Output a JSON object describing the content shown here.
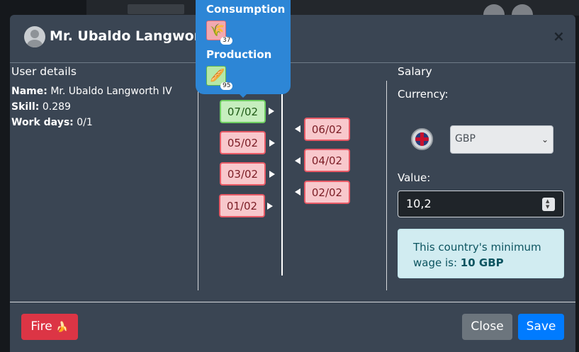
{
  "modal": {
    "title": "Mr. Ubaldo Langworth",
    "close_glyph": "×"
  },
  "user_details": {
    "heading": "User details",
    "name_label": "Name:",
    "name_value": "Mr. Ubaldo Langworth IV",
    "skill_label": "Skill:",
    "skill_value": "0.289",
    "workdays_label": "Work days:",
    "workdays_value": "0/1"
  },
  "tooltip": {
    "consumption_label": "Consumption",
    "consumption_icon": "wheat-icon",
    "consumption_count": "37",
    "production_label": "Production",
    "production_icon": "bread-icon",
    "production_count": "95"
  },
  "timeline": {
    "left_days": [
      {
        "label": "07/02",
        "status": "green"
      },
      {
        "label": "05/02",
        "status": "red"
      },
      {
        "label": "03/02",
        "status": "red"
      },
      {
        "label": "01/02",
        "status": "red"
      }
    ],
    "right_days": [
      {
        "label": "06/02",
        "status": "red"
      },
      {
        "label": "04/02",
        "status": "red"
      },
      {
        "label": "02/02",
        "status": "red"
      }
    ]
  },
  "salary": {
    "heading": "Salary",
    "currency_label": "Currency:",
    "currency_flag_icon": "uk-flag-icon",
    "currency_value": "GBP",
    "value_label": "Value:",
    "value": "10,2",
    "min_wage_text": "This country's minimum wage is:",
    "min_wage_amount": "10 GBP"
  },
  "footer": {
    "fire_label": "Fire",
    "fire_icon": "banana-icon",
    "close_label": "Close",
    "save_label": "Save"
  },
  "colors": {
    "modal_bg": "#3a4553",
    "fire": "#dc3545",
    "close": "#6c757d",
    "save": "#007bff",
    "tooltip": "#2d86d6",
    "day_red_bg": "#f8c8cc",
    "day_green_bg": "#c6eebe",
    "alert_bg": "#d1ecf1"
  }
}
